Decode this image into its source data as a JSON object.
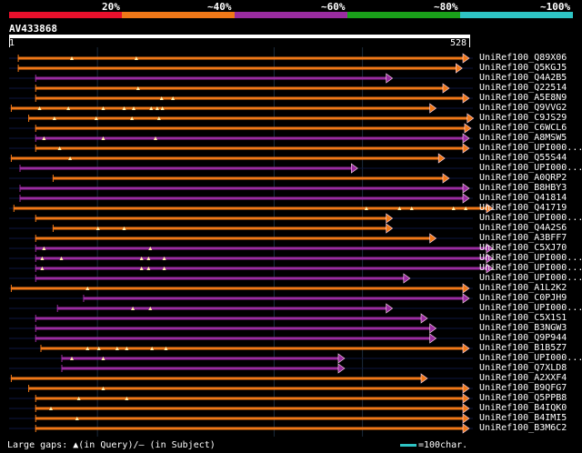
{
  "legend": {
    "labels": [
      "20%",
      "~40%",
      "~60%",
      "~80%",
      "~100%"
    ],
    "segments": [
      {
        "color": "#e8102c"
      },
      {
        "color": "#f07818"
      },
      {
        "color": "#9a2ca0"
      },
      {
        "color": "#1aa01a"
      },
      {
        "color": "#2ec4c4"
      }
    ]
  },
  "query": {
    "name": "AV433868",
    "start_label": "1",
    "end_label": "528",
    "length": 528
  },
  "hits": [
    {
      "label": "UniRef100_Q89X06",
      "color": "orange",
      "start": 10,
      "end": 528,
      "marks": [
        72,
        146
      ]
    },
    {
      "label": "UniRef100_Q5KGJ5",
      "color": "orange",
      "start": 10,
      "end": 520,
      "marks": []
    },
    {
      "label": "UniRef100_Q4A2B5",
      "color": "purple",
      "start": 30,
      "end": 440,
      "marks": []
    },
    {
      "label": "UniRef100_Q22514",
      "color": "orange",
      "start": 30,
      "end": 505,
      "marks": [
        148
      ]
    },
    {
      "label": "UniRef100_A5E8N9",
      "color": "orange",
      "start": 30,
      "end": 528,
      "marks": [
        175,
        188
      ]
    },
    {
      "label": "UniRef100_Q9VVG2",
      "color": "orange",
      "start": 2,
      "end": 490,
      "marks": [
        35,
        68,
        108,
        132,
        143,
        163,
        170,
        176
      ]
    },
    {
      "label": "UniRef100_C9JS29",
      "color": "orange",
      "start": 22,
      "end": 533,
      "marks": [
        52,
        100,
        141,
        172
      ]
    },
    {
      "label": "UniRef100_C6WCL6",
      "color": "orange",
      "start": 30,
      "end": 530,
      "marks": []
    },
    {
      "label": "UniRef100_A8MSW5",
      "color": "purple",
      "start": 30,
      "end": 528,
      "marks": [
        40,
        108,
        168
      ]
    },
    {
      "label": "UniRef100_UPI000...",
      "color": "orange",
      "start": 30,
      "end": 528,
      "marks": [
        58
      ]
    },
    {
      "label": "UniRef100_Q55S44",
      "color": "orange",
      "start": 2,
      "end": 500,
      "marks": [
        70
      ]
    },
    {
      "label": "UniRef100_UPI000...",
      "color": "purple",
      "start": 12,
      "end": 400,
      "marks": []
    },
    {
      "label": "UniRef100_A0QRP2",
      "color": "orange",
      "start": 50,
      "end": 505,
      "marks": []
    },
    {
      "label": "UniRef100_B8HBY3",
      "color": "purple",
      "start": 12,
      "end": 528,
      "marks": []
    },
    {
      "label": "UniRef100_Q41814",
      "color": "purple",
      "start": 12,
      "end": 528,
      "marks": []
    },
    {
      "label": "UniRef100_Q41719",
      "color": "orange",
      "start": 5,
      "end": 555,
      "marks": [
        410,
        448,
        462,
        510,
        524
      ]
    },
    {
      "label": "UniRef100_UPI000...",
      "color": "orange",
      "start": 30,
      "end": 440,
      "marks": []
    },
    {
      "label": "UniRef100_Q4A2S6",
      "color": "orange",
      "start": 50,
      "end": 440,
      "marks": [
        102,
        132
      ]
    },
    {
      "label": "UniRef100_A3BFF7",
      "color": "orange",
      "start": 30,
      "end": 490,
      "marks": []
    },
    {
      "label": "UniRef100_C5XJ70",
      "color": "purple",
      "start": 30,
      "end": 555,
      "marks": [
        40,
        162
      ]
    },
    {
      "label": "UniRef100_UPI000...",
      "color": "purple",
      "start": 30,
      "end": 555,
      "marks": [
        38,
        60,
        152,
        160,
        178
      ]
    },
    {
      "label": "UniRef100_UPI000...",
      "color": "purple",
      "start": 30,
      "end": 555,
      "marks": [
        38,
        152,
        160,
        178
      ]
    },
    {
      "label": "UniRef100_UPI000...",
      "color": "purple",
      "start": 30,
      "end": 460,
      "marks": []
    },
    {
      "label": "UniRef100_A1L2K2",
      "color": "orange",
      "start": 2,
      "end": 528,
      "marks": [
        90
      ]
    },
    {
      "label": "UniRef100_C0PJH9",
      "color": "purple",
      "start": 85,
      "end": 528,
      "marks": []
    },
    {
      "label": "UniRef100_UPI000...",
      "color": "purple",
      "start": 55,
      "end": 440,
      "marks": [
        142,
        162
      ]
    },
    {
      "label": "UniRef100_C5X1S1",
      "color": "purple",
      "start": 30,
      "end": 480,
      "marks": []
    },
    {
      "label": "UniRef100_B3NGW3",
      "color": "purple",
      "start": 30,
      "end": 490,
      "marks": []
    },
    {
      "label": "UniRef100_Q9P944",
      "color": "purple",
      "start": 30,
      "end": 490,
      "marks": []
    },
    {
      "label": "UniRef100_B1B5Z7",
      "color": "orange",
      "start": 36,
      "end": 528,
      "marks": [
        90,
        103,
        124,
        135,
        164,
        180
      ]
    },
    {
      "label": "UniRef100_UPI000...",
      "color": "purple",
      "start": 60,
      "end": 385,
      "marks": [
        72,
        108
      ]
    },
    {
      "label": "UniRef100_Q7XLD8",
      "color": "purple",
      "start": 60,
      "end": 385,
      "marks": []
    },
    {
      "label": "UniRef100_A2XXF4",
      "color": "orange",
      "start": 2,
      "end": 480,
      "marks": []
    },
    {
      "label": "UniRef100_B9QFG7",
      "color": "orange",
      "start": 22,
      "end": 528,
      "marks": [
        108
      ]
    },
    {
      "label": "UniRef100_Q5PPB8",
      "color": "orange",
      "start": 30,
      "end": 528,
      "marks": [
        80,
        135
      ]
    },
    {
      "label": "UniRef100_B4IQK0",
      "color": "orange",
      "start": 30,
      "end": 528,
      "marks": [
        48
      ]
    },
    {
      "label": "UniRef100_B4IMI5",
      "color": "orange",
      "start": 30,
      "end": 528,
      "marks": [
        78
      ]
    },
    {
      "label": "UniRef100_B3M6C2",
      "color": "orange",
      "start": 30,
      "end": 528,
      "marks": []
    }
  ],
  "colors": {
    "orange": "#f07818",
    "purple": "#9a2ca0"
  },
  "footer": {
    "gap_text": "Large gaps: ▲(in Query)/– (in Subject)",
    "scale_text": "=100char."
  }
}
